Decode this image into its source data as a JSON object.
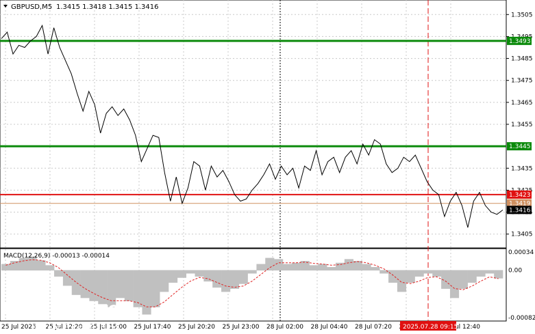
{
  "header": {
    "symbol_label": "GBPUSD,M5",
    "ohlc": "1.3415 1.3418 1.3415 1.3416",
    "dropdown_icon": "triangle-down-icon"
  },
  "colors": {
    "green": "#0a8a0a",
    "red": "#e01010",
    "orange": "#d09060",
    "price": "#000000",
    "hist": "#c0c0c0",
    "signal": "#e02020"
  },
  "price_axis": {
    "ticks": [
      "1.3505",
      "1.3495",
      "1.3485",
      "1.3475",
      "1.3465",
      "1.3455",
      "1.3435",
      "1.3425",
      "1.3415",
      "1.3405"
    ]
  },
  "levels": [
    {
      "label": "1.3493",
      "kind": "green"
    },
    {
      "label": "1.3445",
      "kind": "green"
    },
    {
      "label": "1.3423",
      "kind": "red"
    },
    {
      "label": "1.3419",
      "kind": "orange"
    },
    {
      "label": "1.3416",
      "kind": "black"
    }
  ],
  "macd": {
    "label": "MACD(12,26,9) -0.00013 -0.00014",
    "ticks": [
      "0.00034",
      "0.00",
      "-0.00082"
    ]
  },
  "time_axis": {
    "labels": [
      "25 Jul 2025",
      "25 Jul 12:20",
      "25 Jul 15:00",
      "25 Jul 17:40",
      "25 Jul 20:20",
      "25 Jul 23:00",
      "28 Jul 02:00",
      "28 Jul 04:40",
      "28 Jul 07:20",
      "28 Jul 10:00",
      "28 Jul 12:40"
    ],
    "highlight": "2025.07.28 09:15"
  },
  "watermark": {
    "brand": "instaforex",
    "tagline": "Instant Forex Trading",
    "icon": "instaforex-logo-icon"
  },
  "chart_data": [
    {
      "type": "line",
      "title": "GBPUSD,M5",
      "ylim": [
        1.3399,
        1.3511
      ],
      "grid": true,
      "y": [
        1.3494,
        1.3497,
        1.3487,
        1.3491,
        1.349,
        1.3493,
        1.3495,
        1.35,
        1.3487,
        1.3499,
        1.349,
        1.3484,
        1.3478,
        1.3469,
        1.3461,
        1.347,
        1.3464,
        1.3451,
        1.346,
        1.3463,
        1.3459,
        1.3462,
        1.3457,
        1.345,
        1.3438,
        1.3444,
        1.345,
        1.3449,
        1.3433,
        1.342,
        1.3431,
        1.3419,
        1.3426,
        1.3438,
        1.3436,
        1.3425,
        1.3436,
        1.3431,
        1.3434,
        1.3429,
        1.3423,
        1.342,
        1.3421,
        1.3425,
        1.3428,
        1.3432,
        1.3437,
        1.343,
        1.3436,
        1.3432,
        1.3435,
        1.3426,
        1.3436,
        1.3434,
        1.3443,
        1.3432,
        1.3438,
        1.344,
        1.3433,
        1.344,
        1.3443,
        1.3437,
        1.3446,
        1.3441,
        1.3448,
        1.3446,
        1.3437,
        1.3433,
        1.3435,
        1.344,
        1.3438,
        1.3441,
        1.3435,
        1.3429,
        1.3425,
        1.3423,
        1.3413,
        1.342,
        1.3424,
        1.3418,
        1.3408,
        1.342,
        1.3424,
        1.3418,
        1.3415,
        1.3414,
        1.3416
      ],
      "line_levels": [
        1.3493,
        1.3445,
        1.3423,
        1.3419,
        1.3416
      ]
    },
    {
      "type": "bar",
      "title": "MACD(12,26,9)",
      "ylim": [
        -0.00082,
        0.00034
      ],
      "values": [
        0.0001,
        0.00015,
        0.0002,
        0.00022,
        0.00016,
        8e-05,
        -0.0001,
        -0.00025,
        -0.0004,
        -0.00045,
        -0.0005,
        -0.00055,
        -0.0006,
        -0.00045,
        -0.0005,
        -0.0006,
        -0.00072,
        -0.0006,
        -0.00035,
        -0.0002,
        -0.00012,
        -5e-05,
        -0.0001,
        -0.00018,
        -0.00028,
        -0.00035,
        -0.0003,
        -0.00022,
        -5e-05,
        0.0001,
        0.0002,
        0.00018,
        0.0001,
        0.00012,
        0.00015,
        8e-05,
        0.0001,
        5e-05,
        0.00012,
        0.00018,
        0.00015,
        0.0001,
        5e-05,
        -5e-05,
        -0.0002,
        -0.00035,
        -0.0002,
        -0.0001,
        -5e-05,
        -0.0001,
        -0.0003,
        -0.00045,
        -0.0003,
        -0.0002,
        -0.0001,
        -5e-05,
        -0.00013
      ],
      "signal": [
        8e-05,
        0.00012,
        0.00015,
        0.00017,
        0.00016,
        0.00012,
        4e-05,
        -8e-05,
        -0.0002,
        -0.0003,
        -0.00038,
        -0.00045,
        -0.0005,
        -0.0005,
        -0.0005,
        -0.00053,
        -0.0006,
        -0.0006,
        -0.00052,
        -0.0004,
        -0.00028,
        -0.00018,
        -0.00012,
        -0.00014,
        -0.0002,
        -0.00026,
        -0.00028,
        -0.00026,
        -0.00018,
        -7e-05,
        4e-05,
        0.00012,
        0.00012,
        0.00012,
        0.00013,
        0.00011,
        0.0001,
        8e-05,
        9e-05,
        0.00012,
        0.00014,
        0.00012,
        8e-05,
        2e-05,
        -8e-05,
        -0.0002,
        -0.00022,
        -0.00018,
        -0.00012,
        -0.00011,
        -0.00018,
        -0.0003,
        -0.00032,
        -0.00026,
        -0.00018,
        -0.00011,
        -0.00014
      ]
    }
  ]
}
